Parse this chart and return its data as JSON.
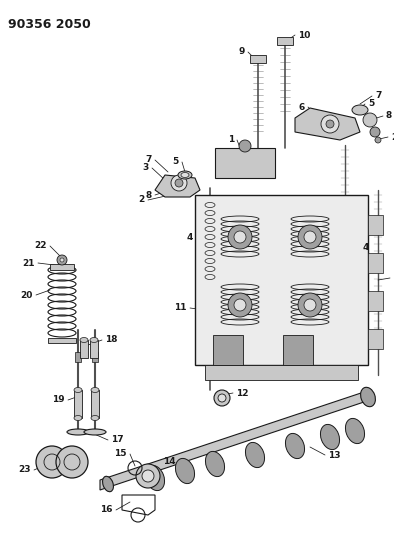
{
  "title": "90356 2050",
  "bg_color": "#ffffff",
  "fig_width": 3.94,
  "fig_height": 5.33,
  "dpi": 100,
  "line_color": "#1a1a1a",
  "gray1": "#c8c8c8",
  "gray2": "#a0a0a0",
  "gray3": "#e0e0e0",
  "gray4": "#888888",
  "gray5": "#505050"
}
